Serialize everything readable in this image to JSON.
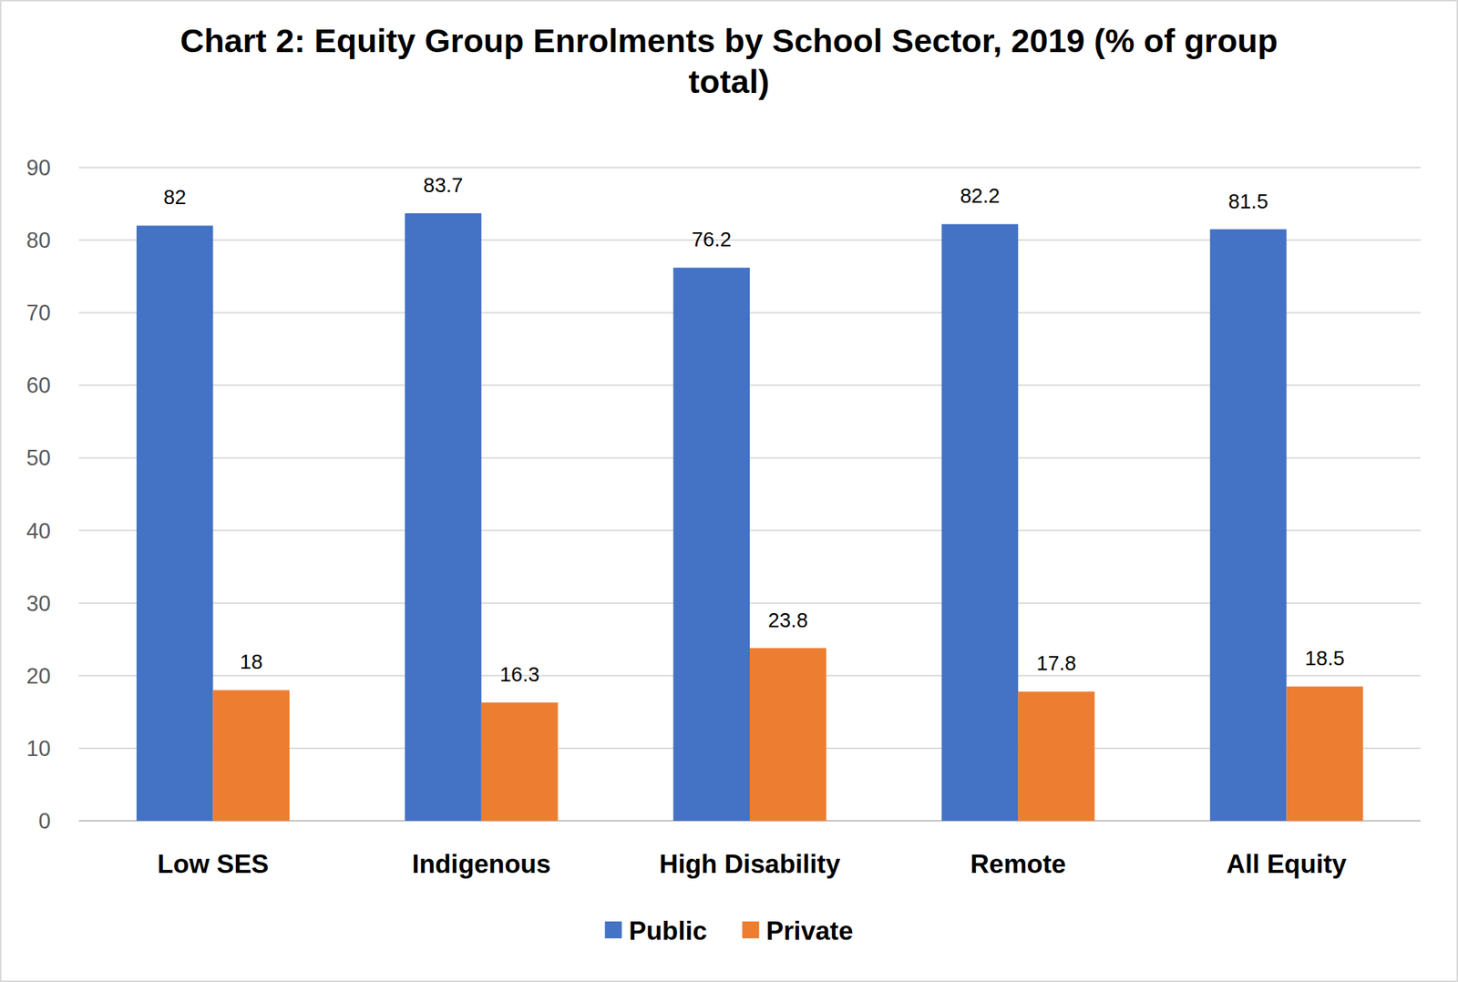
{
  "chart_data": {
    "type": "bar",
    "title": "Chart 2: Equity Group Enrolments by School Sector, 2019 (% of group total)",
    "categories": [
      "Low SES",
      "Indigenous",
      "High Disability",
      "Remote",
      "All Equity"
    ],
    "series": [
      {
        "name": "Public",
        "color": "#4472c4",
        "values": [
          82,
          83.7,
          76.2,
          82.2,
          81.5
        ]
      },
      {
        "name": "Private",
        "color": "#ed7d31",
        "values": [
          18,
          16.3,
          23.8,
          17.8,
          18.5
        ]
      }
    ],
    "ylim": [
      0,
      90
    ],
    "yticks": [
      0,
      10,
      20,
      30,
      40,
      50,
      60,
      70,
      80,
      90
    ],
    "grid": true,
    "legend": "bottom",
    "data_labels": true
  }
}
